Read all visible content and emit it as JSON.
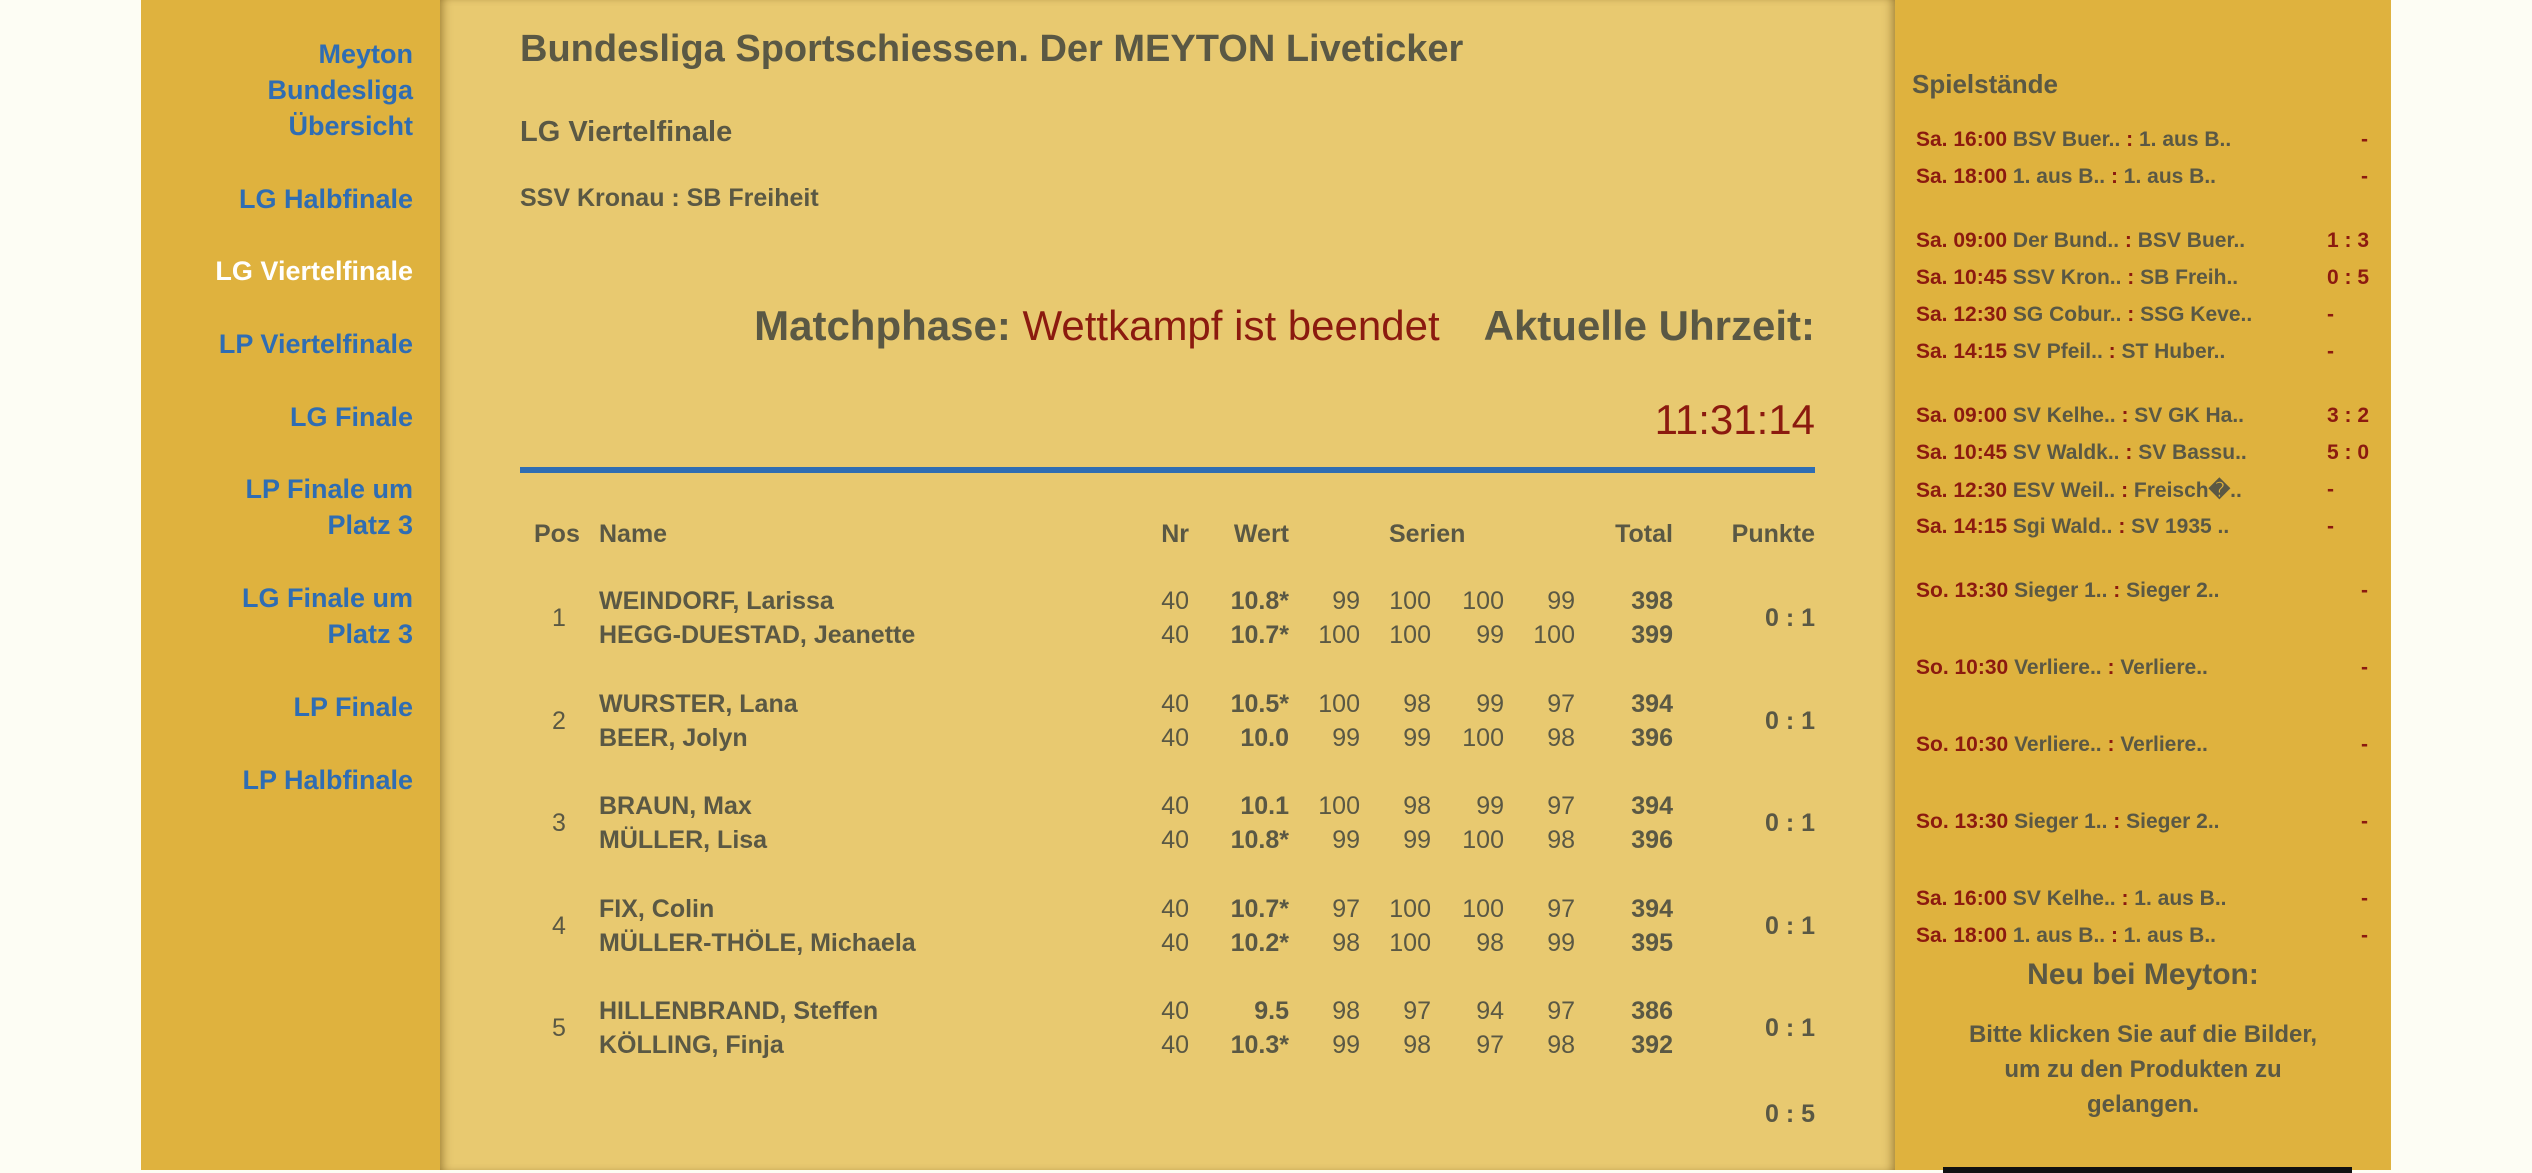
{
  "nav": [
    {
      "label": "Meyton Bundesliga Übersicht",
      "lines": [
        "Meyton",
        "Bundesliga",
        "Übersicht"
      ],
      "active": false
    },
    {
      "label": "LG Halbfinale",
      "lines": [
        "LG Halbfinale"
      ],
      "active": false
    },
    {
      "label": "LG Viertelfinale",
      "lines": [
        "LG Viertelfinale"
      ],
      "active": true
    },
    {
      "label": "LP Viertelfinale",
      "lines": [
        "LP Viertelfinale"
      ],
      "active": false
    },
    {
      "label": "LG Finale",
      "lines": [
        "LG Finale"
      ],
      "active": false
    },
    {
      "label": "LP Finale um Platz 3",
      "lines": [
        "LP Finale um",
        "Platz 3"
      ],
      "active": false
    },
    {
      "label": "LG Finale um Platz 3",
      "lines": [
        "LG Finale um",
        "Platz 3"
      ],
      "active": false
    },
    {
      "label": "LP Finale",
      "lines": [
        "LP Finale"
      ],
      "active": false
    },
    {
      "label": "LP Halbfinale",
      "lines": [
        "LP Halbfinale"
      ],
      "active": false
    }
  ],
  "header": {
    "title": "Bundesliga Sportschiessen. Der MEYTON Liveticker",
    "subtitle": "LG Viertelfinale",
    "pairing": "SSV Kronau : SB Freiheit",
    "phase_label": "Matchphase:",
    "phase_value": "Wettkampf ist beendet",
    "time_label": "Aktuelle Uhrzeit:",
    "time_value": "11:31:14"
  },
  "table": {
    "headers": {
      "pos": "Pos",
      "name": "Name",
      "nr": "Nr",
      "wert": "Wert",
      "serien": "Serien",
      "total": "Total",
      "punkte": "Punkte"
    },
    "rows": [
      {
        "pos": "1",
        "punkte": "0 : 1",
        "shooters": [
          {
            "name": "WEINDORF, Larissa",
            "nr": "40",
            "wert": "10.8*",
            "serien": [
              "99",
              "100",
              "100",
              "99"
            ],
            "total": "398"
          },
          {
            "name": "HEGG-DUESTAD, Jeanette",
            "nr": "40",
            "wert": "10.7*",
            "serien": [
              "100",
              "100",
              "99",
              "100"
            ],
            "total": "399"
          }
        ]
      },
      {
        "pos": "2",
        "punkte": "0 : 1",
        "shooters": [
          {
            "name": "WURSTER, Lana",
            "nr": "40",
            "wert": "10.5*",
            "serien": [
              "100",
              "98",
              "99",
              "97"
            ],
            "total": "394"
          },
          {
            "name": "BEER, Jolyn",
            "nr": "40",
            "wert": "10.0",
            "serien": [
              "99",
              "99",
              "100",
              "98"
            ],
            "total": "396"
          }
        ]
      },
      {
        "pos": "3",
        "punkte": "0 : 1",
        "shooters": [
          {
            "name": "BRAUN, Max",
            "nr": "40",
            "wert": "10.1",
            "serien": [
              "100",
              "98",
              "99",
              "97"
            ],
            "total": "394"
          },
          {
            "name": "MÜLLER, Lisa",
            "nr": "40",
            "wert": "10.8*",
            "serien": [
              "99",
              "99",
              "100",
              "98"
            ],
            "total": "396"
          }
        ]
      },
      {
        "pos": "4",
        "punkte": "0 : 1",
        "shooters": [
          {
            "name": "FIX, Colin",
            "nr": "40",
            "wert": "10.7*",
            "serien": [
              "97",
              "100",
              "100",
              "97"
            ],
            "total": "394"
          },
          {
            "name": "MÜLLER-THÖLE, Michaela",
            "nr": "40",
            "wert": "10.2*",
            "serien": [
              "98",
              "100",
              "98",
              "99"
            ],
            "total": "395"
          }
        ]
      },
      {
        "pos": "5",
        "punkte": "0 : 1",
        "shooters": [
          {
            "name": "HILLENBRAND, Steffen",
            "nr": "40",
            "wert": "9.5",
            "serien": [
              "98",
              "97",
              "94",
              "97"
            ],
            "total": "386"
          },
          {
            "name": "KÖLLING, Finja",
            "nr": "40",
            "wert": "10.3*",
            "serien": [
              "99",
              "98",
              "97",
              "98"
            ],
            "total": "392"
          }
        ]
      }
    ],
    "final_punkte": "0 : 5"
  },
  "spielstaende": {
    "title": "Spielstände",
    "groups": [
      {
        "align": "end",
        "games": [
          {
            "time": "Sa. 16:00",
            "home": "BSV Buer..",
            "away": "1. aus B..",
            "score": "-"
          },
          {
            "time": "Sa. 18:00",
            "home": "1. aus B..",
            "away": "1. aus B..",
            "score": "-"
          }
        ]
      },
      {
        "align": "mid",
        "games": [
          {
            "time": "Sa. 09:00",
            "home": "Der Bund..",
            "away": "BSV Buer..",
            "score": "1 : 3"
          },
          {
            "time": "Sa. 10:45",
            "home": "SSV Kron..",
            "away": "SB Freih..",
            "score": "0 : 5"
          },
          {
            "time": "Sa. 12:30",
            "home": "SG Cobur..",
            "away": "SSG Keve..",
            "score": "-"
          },
          {
            "time": "Sa. 14:15",
            "home": "SV Pfeil..",
            "away": "ST Huber..",
            "score": "-"
          }
        ]
      },
      {
        "align": "mid",
        "games": [
          {
            "time": "Sa. 09:00",
            "home": "SV Kelhe..",
            "away": "SV GK Ha..",
            "score": "3 : 2"
          },
          {
            "time": "Sa. 10:45",
            "home": "SV Waldk..",
            "away": "SV Bassu..",
            "score": "5 : 0"
          },
          {
            "time": "Sa. 12:30",
            "home": "ESV Weil..",
            "away": "Freisch�..",
            "score": "-"
          },
          {
            "time": "Sa. 14:15",
            "home": "Sgi Wald..",
            "away": "SV 1935 ..",
            "score": "-"
          }
        ]
      },
      {
        "align": "end",
        "games": [
          {
            "time": "So. 13:30",
            "home": "Sieger 1..",
            "away": "Sieger 2..",
            "score": "-"
          }
        ]
      },
      {
        "align": "end",
        "games": [
          {
            "time": "So. 10:30",
            "home": "Verliere..",
            "away": "Verliere..",
            "score": "-"
          }
        ]
      },
      {
        "align": "end",
        "games": [
          {
            "time": "So. 10:30",
            "home": "Verliere..",
            "away": "Verliere..",
            "score": "-"
          }
        ]
      },
      {
        "align": "end",
        "games": [
          {
            "time": "So. 13:30",
            "home": "Sieger 1..",
            "away": "Sieger 2..",
            "score": "-"
          }
        ]
      },
      {
        "align": "end",
        "games": [
          {
            "time": "Sa. 16:00",
            "home": "SV Kelhe..",
            "away": "1. aus B..",
            "score": "-"
          },
          {
            "time": "Sa. 18:00",
            "home": "1. aus B..",
            "away": "1. aus B..",
            "score": "-"
          }
        ]
      }
    ]
  },
  "promo": {
    "title": "Neu bei Meyton:",
    "text_lines": [
      "Bitte klicken Sie auf die Bilder,",
      "um zu den Produkten zu",
      "gelangen."
    ]
  },
  "colors": {
    "accent_blue": "#2f6db3",
    "status_red": "#8b1a0f",
    "sidebar": "#dfb23e",
    "main": "#e8c970",
    "text": "#5a5844"
  }
}
